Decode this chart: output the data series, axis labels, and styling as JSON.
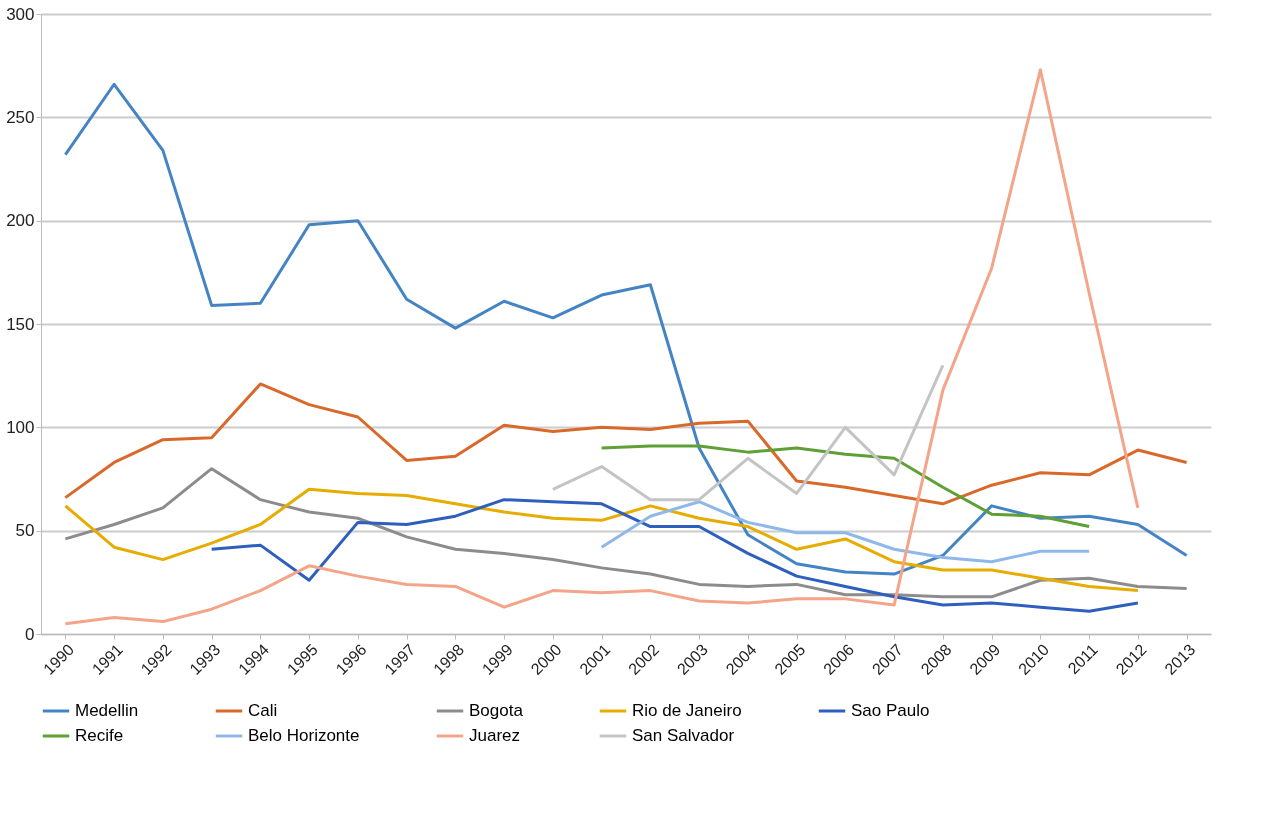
{
  "chart_data": {
    "type": "line",
    "categories": [
      "1990",
      "1991",
      "1992",
      "1993",
      "1994",
      "1995",
      "1996",
      "1997",
      "1998",
      "1999",
      "2000",
      "2001",
      "2002",
      "2003",
      "2004",
      "2005",
      "2006",
      "2007",
      "2008",
      "2009",
      "2010",
      "2011",
      "2012",
      "2013"
    ],
    "ylim": [
      0,
      300
    ],
    "yticks": [
      0,
      50,
      100,
      150,
      200,
      250,
      300
    ],
    "grid": "y",
    "legend": "bottom",
    "marker": "none",
    "line_style": "solid",
    "series": [
      {
        "name": "Medellin",
        "color": "#4584c4",
        "values": [
          232,
          266,
          234,
          159,
          160,
          198,
          200,
          162,
          148,
          161,
          153,
          164,
          169,
          90,
          48,
          34,
          30,
          29,
          38,
          62,
          56,
          57,
          53,
          38
        ]
      },
      {
        "name": "Cali",
        "color": "#d9692a",
        "values": [
          66,
          83,
          94,
          95,
          121,
          111,
          105,
          84,
          86,
          101,
          98,
          100,
          99,
          102,
          103,
          74,
          71,
          67,
          63,
          72,
          78,
          77,
          89,
          83
        ]
      },
      {
        "name": "Bogota",
        "color": "#8c8c8c",
        "values": [
          46,
          53,
          61,
          80,
          65,
          59,
          56,
          47,
          41,
          39,
          36,
          32,
          29,
          24,
          23,
          24,
          19,
          19,
          18,
          18,
          26,
          27,
          23,
          22
        ]
      },
      {
        "name": "Rio de Janeiro",
        "color": "#e6ac00",
        "values": [
          62,
          42,
          36,
          44,
          53,
          70,
          68,
          67,
          63,
          59,
          56,
          55,
          62,
          56,
          52,
          41,
          46,
          35,
          31,
          31,
          27,
          23,
          21,
          null
        ]
      },
      {
        "name": "Sao Paulo",
        "color": "#2e5fbf",
        "values": [
          null,
          null,
          null,
          41,
          43,
          26,
          54,
          53,
          57,
          65,
          64,
          63,
          52,
          52,
          39,
          28,
          23,
          18,
          14,
          15,
          13,
          11,
          15,
          null
        ]
      },
      {
        "name": "Recife",
        "color": "#5ea035",
        "values": [
          null,
          null,
          null,
          null,
          null,
          null,
          null,
          null,
          null,
          null,
          null,
          90,
          91,
          91,
          88,
          90,
          87,
          85,
          71,
          58,
          57,
          52,
          null,
          null
        ]
      },
      {
        "name": "Belo Horizonte",
        "color": "#8fb8ea",
        "values": [
          null,
          null,
          null,
          null,
          null,
          null,
          null,
          null,
          null,
          null,
          null,
          42,
          57,
          64,
          54,
          49,
          49,
          41,
          37,
          35,
          40,
          40,
          null,
          null
        ]
      },
      {
        "name": "Juarez",
        "color": "#f4a488",
        "values": [
          5,
          8,
          6,
          12,
          21,
          33,
          28,
          24,
          23,
          13,
          21,
          20,
          21,
          16,
          15,
          17,
          17,
          14,
          118,
          177,
          273,
          165,
          61,
          null
        ]
      },
      {
        "name": "San Salvador",
        "color": "#c4c4c4",
        "values": [
          null,
          null,
          null,
          null,
          null,
          null,
          null,
          null,
          null,
          null,
          70,
          81,
          65,
          65,
          85,
          68,
          100,
          77,
          130,
          null,
          null,
          null,
          null,
          null
        ]
      }
    ]
  }
}
